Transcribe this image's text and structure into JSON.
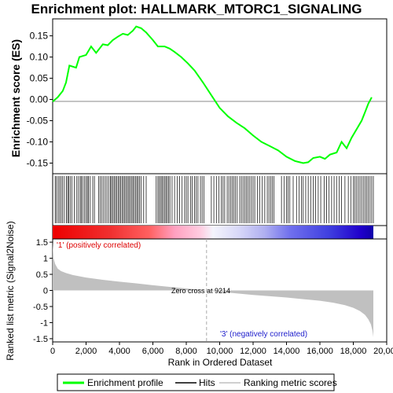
{
  "chart_data": {
    "type": "line",
    "title": "Enrichment plot: HALLMARK_MTORC1_SIGNALING",
    "top_panel": {
      "ylabel": "Enrichment score (ES)",
      "ylim": [
        -0.175,
        0.19
      ],
      "yticks": [
        "0.15",
        "0.10",
        "0.05",
        "0.00",
        "-0.05",
        "-0.10",
        "-0.15"
      ],
      "ytick_values": [
        0.15,
        0.1,
        0.05,
        0.0,
        -0.05,
        -0.1,
        -0.15
      ],
      "series": [
        {
          "name": "Enrichment profile",
          "color": "#00ff00",
          "x": [
            0,
            300,
            600,
            800,
            1000,
            1400,
            1600,
            2000,
            2300,
            2600,
            3000,
            3300,
            3600,
            3900,
            4200,
            4500,
            4800,
            5000,
            5300,
            5600,
            6000,
            6300,
            6700,
            7000,
            7300,
            7700,
            8100,
            8500,
            9000,
            9500,
            10000,
            10500,
            11000,
            11500,
            12000,
            12500,
            13000,
            13500,
            14000,
            14500,
            15000,
            15300,
            15600,
            16000,
            16300,
            16600,
            17000,
            17300,
            17600,
            17900,
            18200,
            18500,
            18700,
            18900,
            19100
          ],
          "y": [
            -0.005,
            0.005,
            0.02,
            0.04,
            0.08,
            0.075,
            0.1,
            0.105,
            0.125,
            0.11,
            0.13,
            0.128,
            0.14,
            0.148,
            0.155,
            0.152,
            0.162,
            0.172,
            0.168,
            0.158,
            0.14,
            0.125,
            0.125,
            0.12,
            0.112,
            0.1,
            0.085,
            0.068,
            0.04,
            0.01,
            -0.02,
            -0.04,
            -0.055,
            -0.068,
            -0.085,
            -0.1,
            -0.11,
            -0.12,
            -0.135,
            -0.145,
            -0.15,
            -0.148,
            -0.138,
            -0.135,
            -0.14,
            -0.13,
            -0.125,
            -0.1,
            -0.115,
            -0.09,
            -0.07,
            -0.05,
            -0.03,
            -0.01,
            0.005
          ]
        }
      ]
    },
    "hits_panel": {
      "hit_positions": [
        150,
        230,
        330,
        420,
        510,
        600,
        700,
        820,
        900,
        960,
        1050,
        1150,
        1300,
        1450,
        1550,
        1650,
        1720,
        1800,
        1900,
        2000,
        2080,
        2150,
        2250,
        2400,
        2500,
        2750,
        2850,
        2950,
        3050,
        3150,
        3250,
        3350,
        3450,
        3520,
        3600,
        3680,
        3760,
        3840,
        3920,
        4000,
        4080,
        4160,
        4240,
        4320,
        4400,
        4480,
        4560,
        4640,
        4720,
        4800,
        4880,
        4960,
        5040,
        5120,
        5200,
        5300,
        5450,
        5600,
        6200,
        6300,
        6380,
        6460,
        6540,
        6620,
        6700,
        6780,
        6860,
        6940,
        7020,
        7150,
        7300,
        7450,
        7600,
        7750,
        7900,
        8000,
        8100,
        8250,
        8350,
        8500,
        8600,
        8700,
        8850,
        8950,
        9050,
        9500,
        9650,
        9800,
        9950,
        10100,
        10200,
        10300,
        10450,
        10550,
        10650,
        10750,
        10850,
        10950,
        11050,
        11200,
        11300,
        11400,
        11500,
        11600,
        11700,
        11800,
        11900,
        12000,
        12100,
        12250,
        12400,
        12550,
        12700,
        12850,
        12950,
        13050,
        13150,
        13250,
        13700,
        13850,
        14000,
        14100,
        14200,
        14400,
        14600,
        14750,
        14900,
        15000,
        15150,
        15300,
        15450,
        15600,
        15750,
        15900,
        16050,
        16250,
        16400,
        16550,
        16700,
        16850,
        17000,
        17150,
        17300,
        17500,
        17700,
        17850,
        18000,
        18100,
        18200,
        18300,
        18400,
        18500,
        18600,
        18700,
        18800,
        18900,
        19000,
        19100,
        19200
      ]
    },
    "rank_bar": {
      "label_positive": "'1' (positively correlated)",
      "label_negative": "'3' (negatively correlated)",
      "color_positive": "#ff0000",
      "color_negative": "#0000ff",
      "stops": [
        {
          "at": 0.0,
          "color": "#ee0000"
        },
        {
          "at": 0.18,
          "color": "#f03030"
        },
        {
          "at": 0.3,
          "color": "#ff6060"
        },
        {
          "at": 0.38,
          "color": "#ffa0c0"
        },
        {
          "at": 0.46,
          "color": "#ffcce0"
        },
        {
          "at": 0.5,
          "color": "#f4f4fc"
        },
        {
          "at": 0.58,
          "color": "#d8d8f8"
        },
        {
          "at": 0.66,
          "color": "#b0b0f0"
        },
        {
          "at": 0.74,
          "color": "#7070ee"
        },
        {
          "at": 0.86,
          "color": "#4040e0"
        },
        {
          "at": 0.96,
          "color": "#2000cc"
        },
        {
          "at": 1.0,
          "color": "#1000aa"
        }
      ]
    },
    "metric_panel": {
      "ylabel": "Ranked list metric (Signal2Noise)",
      "xlabel": "Rank in Ordered Dataset",
      "ylim": [
        -1.6,
        1.6
      ],
      "yticks": [
        "1.5",
        "1",
        "0.5",
        "0",
        "-0.5",
        "-1",
        "-1.5"
      ],
      "ytick_values": [
        1.5,
        1.0,
        0.5,
        0.0,
        -0.5,
        -1.0,
        -1.5
      ],
      "zero_cross_label": "Zero cross at 9214",
      "zero_cross": 9214,
      "x": [
        0,
        50,
        150,
        300,
        500,
        800,
        1200,
        1600,
        2000,
        3000,
        4000,
        5000,
        6000,
        7000,
        8000,
        9214,
        10000,
        11000,
        12000,
        13000,
        14000,
        15000,
        16000,
        16800,
        17500,
        18000,
        18400,
        18700,
        18900,
        19050,
        19150,
        19200
      ],
      "y": [
        1.5,
        1.0,
        0.82,
        0.68,
        0.6,
        0.54,
        0.48,
        0.44,
        0.4,
        0.33,
        0.27,
        0.22,
        0.16,
        0.11,
        0.06,
        0.0,
        -0.04,
        -0.09,
        -0.14,
        -0.18,
        -0.22,
        -0.27,
        -0.32,
        -0.38,
        -0.46,
        -0.54,
        -0.64,
        -0.76,
        -0.9,
        -1.05,
        -1.25,
        -1.45
      ],
      "fill_color": "#c0c0c0"
    },
    "x_axis": {
      "xlim": [
        0,
        20000
      ],
      "ticks": [
        "0",
        "2,000",
        "4,000",
        "6,000",
        "8,000",
        "10,000",
        "12,000",
        "14,000",
        "16,000",
        "18,000",
        "20,000"
      ],
      "tick_values": [
        0,
        2000,
        4000,
        6000,
        8000,
        10000,
        12000,
        14000,
        16000,
        18000,
        20000
      ]
    },
    "legend": {
      "placement": "bottom",
      "items": [
        {
          "label": "Enrichment profile",
          "color": "#00ff00"
        },
        {
          "label": "Hits",
          "color": "#000000"
        },
        {
          "label": "Ranking metric scores",
          "color": "#c0c0c0"
        }
      ]
    }
  }
}
